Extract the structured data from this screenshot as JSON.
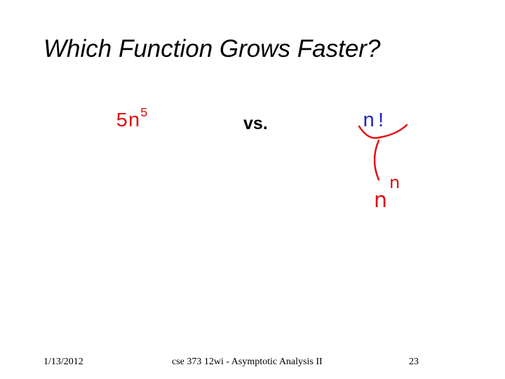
{
  "title": "Which Function Grows Faster?",
  "left": {
    "base": "5n",
    "exponent": "5"
  },
  "middle": "vs.",
  "right": "n!",
  "annotation": {
    "base": "n",
    "exponent": "n"
  },
  "footer": {
    "date": "1/13/2012",
    "course": "cse 373 12wi - Asymptotic Analysis II",
    "page": "23"
  }
}
